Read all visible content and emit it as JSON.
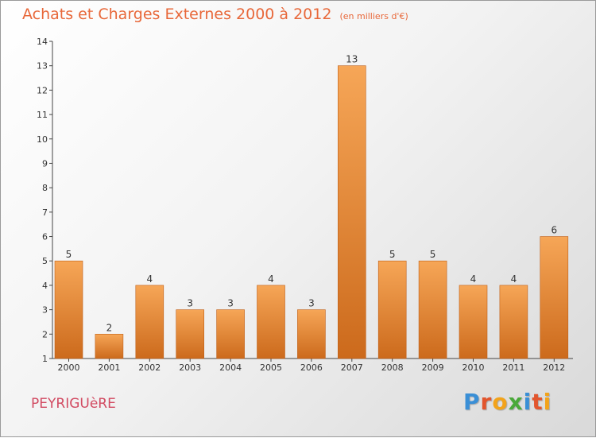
{
  "header": {
    "title": "Achats et Charges Externes 2000 à 2012",
    "subtitle": "(en milliers d'€)"
  },
  "footer": {
    "place": "PEYRIGUèRE",
    "logo": [
      {
        "ch": "P",
        "color": "#3a8fd6"
      },
      {
        "ch": "r",
        "color": "#e2552d"
      },
      {
        "ch": "o",
        "color": "#f2a31b"
      },
      {
        "ch": "x",
        "color": "#4aa93a"
      },
      {
        "ch": "i",
        "color": "#3a8fd6"
      },
      {
        "ch": "t",
        "color": "#e2552d"
      },
      {
        "ch": "i",
        "color": "#f2a31b"
      }
    ]
  },
  "colors": {
    "bar_top": "#f6a657",
    "bar_bottom": "#cc6a1c",
    "bar_edge": "#c06018",
    "title": "#e8683a",
    "place": "#d24b62"
  },
  "chart_data": {
    "type": "bar",
    "categories": [
      "2000",
      "2001",
      "2002",
      "2003",
      "2004",
      "2005",
      "2006",
      "2007",
      "2008",
      "2009",
      "2010",
      "2011",
      "2012"
    ],
    "values": [
      5,
      2,
      4,
      3,
      3,
      4,
      3,
      13,
      5,
      5,
      4,
      4,
      6
    ],
    "data_labels": [
      "5",
      "2",
      "4",
      "3",
      "3",
      "4",
      "3",
      "13",
      "5",
      "5",
      "4",
      "4",
      "6"
    ],
    "yticks": [
      "1",
      "2",
      "3",
      "4",
      "5",
      "6",
      "7",
      "8",
      "9",
      "10",
      "11",
      "12",
      "13",
      "14"
    ],
    "ylim": [
      1,
      14
    ],
    "grid": false,
    "legend": "none"
  }
}
